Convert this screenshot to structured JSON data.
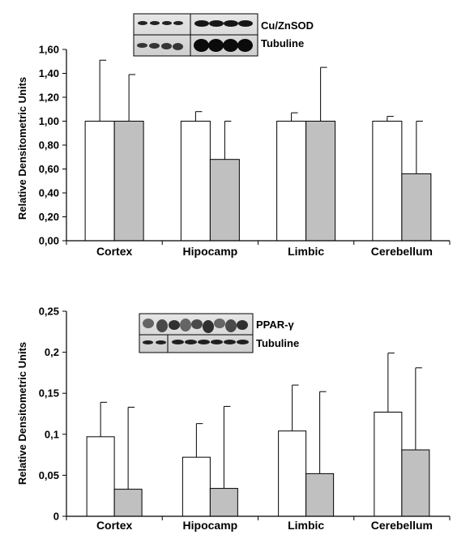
{
  "chart_data": [
    {
      "type": "bar",
      "ylabel": "Relative Densitometric Units",
      "categories": [
        "Cortex",
        "Hipocamp",
        "Limbic",
        "Cerebellum"
      ],
      "ylim": [
        0,
        1.6
      ],
      "yticks": [
        "0,00",
        "0,20",
        "0,40",
        "0,60",
        "0,80",
        "1,00",
        "1,20",
        "1,40",
        "1,60"
      ],
      "ytick_values": [
        0,
        0.2,
        0.4,
        0.6,
        0.8,
        1.0,
        1.2,
        1.4,
        1.6
      ],
      "series": [
        {
          "color": "#ffffff",
          "values": [
            1.0,
            1.0,
            1.0,
            1.0
          ],
          "errors": [
            0.51,
            0.08,
            0.07,
            0.04
          ]
        },
        {
          "color": "#c0c0c0",
          "values": [
            1.0,
            0.68,
            1.0,
            0.56
          ],
          "errors": [
            0.39,
            0.32,
            0.45,
            0.44
          ]
        }
      ],
      "blot_labels": [
        "Cu/ZnSOD",
        "Tubuline"
      ],
      "grid": false
    },
    {
      "type": "bar",
      "ylabel": "Relative Densitometric Units",
      "categories": [
        "Cortex",
        "Hipocamp",
        "Limbic",
        "Cerebellum"
      ],
      "ylim": [
        0,
        0.25
      ],
      "yticks": [
        "0",
        "0,05",
        "0,1",
        "0,15",
        "0,2",
        "0,25"
      ],
      "ytick_values": [
        0,
        0.05,
        0.1,
        0.15,
        0.2,
        0.25
      ],
      "series": [
        {
          "color": "#ffffff",
          "values": [
            0.097,
            0.072,
            0.104,
            0.127
          ],
          "errors": [
            0.042,
            0.041,
            0.056,
            0.072
          ]
        },
        {
          "color": "#c0c0c0",
          "values": [
            0.033,
            0.034,
            0.052,
            0.081
          ],
          "errors": [
            0.1,
            0.1,
            0.1,
            0.1
          ]
        }
      ],
      "blot_labels": [
        "PPAR-γ",
        "Tubuline"
      ],
      "grid": false
    }
  ]
}
